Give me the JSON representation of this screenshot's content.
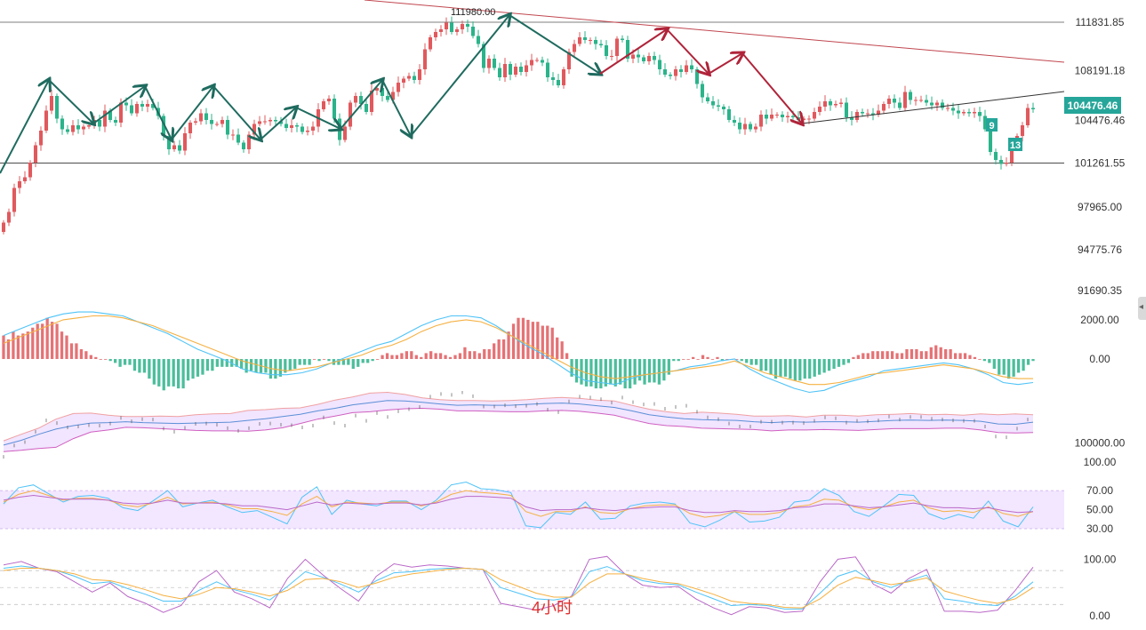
{
  "timeframe_label": "4小时",
  "colors": {
    "up": "#e0595d",
    "down": "#2bb38a",
    "wave_green": "#1f6b5f",
    "wave_red": "#b0243a",
    "resistance": "#c0474f",
    "support": "#333333",
    "price_tag": "#26a69a",
    "td_green": "#26a69a",
    "macd_dif": "#4fc3f7",
    "macd_dea": "#f5b041",
    "kdj_k": "#4fc3f7",
    "kdj_d": "#f5b041",
    "kdj_j": "#ba68c8",
    "band_fill": "#e8d4ff"
  },
  "chart_data": [
    {
      "type": "candlestick",
      "title": "",
      "y_ticks": [
        "111831.85",
        "108191.18",
        "104476.46",
        "101261.55",
        "97965.00",
        "94775.76",
        "91690.35"
      ],
      "y_tick_values": [
        111831.85,
        108191.18,
        104476.46,
        101261.55,
        97965.0,
        94775.76,
        91690.35
      ],
      "ylim": [
        90500,
        113500
      ],
      "current_price": "104476.46",
      "peak_label": "111980.00",
      "horizontal_levels": [
        111831.85,
        101261.55
      ],
      "td_labels": [
        "9",
        "13"
      ],
      "close": [
        96800,
        97600,
        99400,
        99900,
        100200,
        101300,
        102600,
        103700,
        105200,
        106300,
        104600,
        103800,
        103600,
        104100,
        103800,
        104000,
        104100,
        104500,
        104000,
        105200,
        104500,
        104300,
        105800,
        105600,
        105000,
        105700,
        105500,
        105700,
        105400,
        104800,
        103300,
        102300,
        102600,
        102200,
        103500,
        104300,
        104400,
        105000,
        104500,
        104200,
        104200,
        104500,
        103400,
        103400,
        102800,
        102300,
        103400,
        104200,
        104400,
        104400,
        104500,
        104400,
        104200,
        103900,
        104100,
        104000,
        103600,
        103700,
        104000,
        105300,
        105900,
        106100,
        104600,
        103000,
        104000,
        105800,
        106300,
        105700,
        105100,
        106700,
        106900,
        106300,
        106000,
        106600,
        107300,
        107600,
        107800,
        107500,
        108300,
        109800,
        110700,
        111100,
        111300,
        111800,
        111100,
        111300,
        111700,
        111500,
        110800,
        110200,
        108400,
        109100,
        108400,
        107700,
        108700,
        107900,
        108500,
        108100,
        108600,
        109000,
        109000,
        108800,
        107700,
        107500,
        107100,
        108300,
        109600,
        110200,
        110700,
        110500,
        110500,
        110200,
        110100,
        109300,
        109300,
        110600,
        110500,
        109100,
        109400,
        109200,
        108900,
        109300,
        109000,
        108300,
        107900,
        107800,
        108300,
        108100,
        108600,
        108300,
        107200,
        106200,
        105900,
        105600,
        105500,
        105300,
        104500,
        104300,
        103800,
        104200,
        103800,
        104000,
        104900,
        104600,
        104900,
        104900,
        104700,
        104800,
        104700,
        104500,
        104600,
        104600,
        105100,
        105500,
        105900,
        105600,
        105700,
        105800,
        104700,
        104500,
        105100,
        105000,
        105000,
        104900,
        105200,
        105700,
        106100,
        105800,
        105400,
        106600,
        106000,
        106000,
        106000,
        105800,
        105600,
        105800,
        105400,
        105400,
        105200,
        105000,
        105100,
        105000,
        105100,
        104800,
        103800,
        102100,
        101500,
        101200,
        101300,
        102700,
        103300,
        104100,
        105400,
        105300
      ]
    },
    {
      "type": "bar",
      "title": "",
      "indicator": "MACD",
      "y_ticks": [
        "2000.00",
        "0.00"
      ],
      "y_tick_values": [
        2000,
        0
      ],
      "ylim": [
        -1450,
        2450
      ],
      "histogram": [
        1200,
        1000,
        1400,
        1200,
        1300,
        1400,
        1600,
        1800,
        1800,
        2100,
        1900,
        1800,
        1400,
        1200,
        800,
        800,
        500,
        400,
        200,
        100,
        0,
        0,
        -100,
        -200,
        -400,
        -300,
        -300,
        -600,
        -700,
        -700,
        -1000,
        -1300,
        -1400,
        -1600,
        -1400,
        -1400,
        -1500,
        -1500,
        -1100,
        -1000,
        -900,
        -800,
        -600,
        -600,
        -400,
        -400,
        -400,
        -400,
        -400,
        -500,
        -700,
        -600,
        -700,
        -700,
        -700,
        -1000,
        -1000,
        -900,
        -700,
        -600,
        -500,
        -300,
        -300,
        -300,
        0,
        -100,
        0,
        -100,
        -300,
        -300,
        -300,
        -300,
        -500,
        -400,
        -200,
        -200,
        -100,
        0,
        200,
        300,
        200,
        200,
        300,
        400,
        400,
        200,
        100,
        300,
        400,
        300,
        300,
        200,
        100,
        200,
        300,
        600,
        400,
        400,
        300,
        500,
        500,
        800,
        1000,
        1000,
        1400,
        1800,
        2100,
        2100,
        2000,
        1900,
        1900,
        1700,
        1700,
        1600,
        1100,
        900,
        300,
        -900,
        -1200,
        -1300,
        -1400,
        -1400,
        -1500,
        -1500,
        -1400,
        -1300,
        -1400,
        -1300,
        -1500,
        -1500,
        -1300,
        -1100,
        -1300,
        -1200,
        -1200,
        -1300,
        -1100,
        -800,
        -100,
        -100,
        0,
        0,
        100,
        0,
        200,
        100,
        0,
        100,
        -100,
        0,
        0,
        0,
        -100,
        -200,
        -300,
        -300,
        -600,
        -600,
        -800,
        -1000,
        -900,
        -900,
        -1000,
        -1100,
        -1100,
        -1000,
        -1000,
        -900,
        -800,
        -700,
        -600,
        -500,
        -400,
        -300,
        -200,
        100,
        200,
        300,
        300,
        400,
        400,
        400,
        400,
        400,
        300,
        300,
        500,
        500,
        500,
        400,
        400,
        600,
        700,
        600,
        500,
        500,
        300,
        300,
        300,
        200,
        100,
        0,
        -100,
        -200,
        -500,
        -800,
        -800,
        -1000,
        -900,
        -700,
        -600,
        -300,
        -100
      ],
      "dif": [
        1200,
        1500,
        1800,
        2100,
        2300,
        2400,
        2400,
        2300,
        2200,
        1900,
        1600,
        1300,
        900,
        500,
        200,
        -100,
        -500,
        -700,
        -800,
        -800,
        -700,
        -500,
        -200,
        100,
        400,
        700,
        900,
        1300,
        1700,
        2000,
        2200,
        2200,
        2100,
        1700,
        1200,
        700,
        300,
        -200,
        -700,
        -1100,
        -1200,
        -1300,
        -1000,
        -800,
        -700,
        -600,
        -400,
        -300,
        -100,
        0,
        -500,
        -900,
        -1200,
        -1500,
        -1700,
        -1600,
        -1300,
        -1100,
        -900,
        -600,
        -500,
        -400,
        -300,
        -200,
        -300,
        -500,
        -800,
        -1200,
        -1300,
        -1200
      ],
      "dea": [
        800,
        1100,
        1400,
        1700,
        2000,
        2100,
        2200,
        2200,
        2100,
        1900,
        1700,
        1400,
        1100,
        800,
        500,
        200,
        -100,
        -300,
        -500,
        -600,
        -500,
        -400,
        -200,
        0,
        200,
        500,
        700,
        1000,
        1400,
        1700,
        1900,
        2000,
        1900,
        1600,
        1200,
        800,
        400,
        0,
        -400,
        -700,
        -900,
        -1000,
        -900,
        -800,
        -700,
        -600,
        -500,
        -400,
        -300,
        -100,
        -400,
        -700,
        -900,
        -1100,
        -1300,
        -1300,
        -1200,
        -1000,
        -800,
        -700,
        -600,
        -500,
        -400,
        -300,
        -400,
        -500,
        -700,
        -900,
        -1000,
        -1000
      ]
    },
    {
      "type": "line",
      "title": "",
      "indicator": "BOLL",
      "y_ticks": [
        "100000.00"
      ],
      "y_tick_values": [
        100000
      ],
      "ylim": [
        96000,
        112000
      ],
      "upper": [
        100500,
        102000,
        103400,
        105500,
        106800,
        106900,
        106400,
        106100,
        106100,
        106200,
        106100,
        106500,
        106700,
        106800,
        107500,
        107700,
        108000,
        108100,
        108900,
        109900,
        110600,
        111500,
        111700,
        111200,
        110400,
        110000,
        109800,
        109800,
        109700,
        109800,
        110000,
        110300,
        110500,
        110300,
        109900,
        109700,
        108700,
        107800,
        107200,
        106800,
        107100,
        106900,
        106600,
        106200,
        106200,
        106300,
        106000,
        106400,
        106400,
        106200,
        106500,
        106600,
        106800,
        106500,
        106600,
        106400,
        106700,
        106500,
        106700,
        106500
      ],
      "mid": [
        99500,
        100600,
        102000,
        103200,
        104000,
        104600,
        104700,
        104900,
        104700,
        104600,
        104500,
        104600,
        104700,
        104800,
        105200,
        105600,
        106100,
        106600,
        107400,
        108000,
        108800,
        109300,
        109800,
        109700,
        109400,
        109000,
        108700,
        108800,
        108700,
        108700,
        108900,
        109100,
        109200,
        109000,
        108600,
        108200,
        107400,
        106500,
        106000,
        105600,
        105400,
        105300,
        105200,
        104900,
        104700,
        104900,
        104800,
        104900,
        104900,
        104800,
        105000,
        105200,
        105300,
        105200,
        105300,
        105200,
        105000,
        104400,
        104300,
        104800
      ],
      "lower": [
        98000,
        98300,
        98700,
        99000,
        101000,
        102500,
        103000,
        103600,
        103500,
        103300,
        103100,
        102900,
        102800,
        102800,
        102700,
        103000,
        103500,
        104500,
        105500,
        106200,
        107000,
        107200,
        107600,
        107900,
        108000,
        107800,
        107400,
        107400,
        107300,
        107200,
        107200,
        107400,
        107500,
        107300,
        106900,
        106400,
        105400,
        104500,
        104000,
        103800,
        103400,
        103300,
        103200,
        103100,
        102800,
        103000,
        103000,
        103100,
        103000,
        102900,
        103100,
        103300,
        103300,
        103300,
        103400,
        103400,
        103000,
        102400,
        102300,
        102400
      ]
    },
    {
      "type": "line",
      "title": "",
      "indicator": "RSI",
      "y_ticks": [
        "100.00",
        "70.00",
        "50.00",
        "30.00"
      ],
      "y_tick_values": [
        100,
        70,
        50,
        30
      ],
      "ylim": [
        30,
        100
      ],
      "band": [
        30,
        70
      ],
      "rsi1": [
        56,
        73,
        76,
        67,
        58,
        64,
        65,
        62,
        52,
        49,
        59,
        70,
        53,
        57,
        60,
        53,
        47,
        49,
        42,
        35,
        63,
        74,
        45,
        60,
        56,
        54,
        59,
        59,
        50,
        60,
        76,
        79,
        72,
        71,
        68,
        33,
        31,
        47,
        45,
        58,
        40,
        41,
        54,
        57,
        58,
        56,
        36,
        32,
        39,
        48,
        37,
        38,
        42,
        58,
        60,
        72,
        65,
        48,
        43,
        54,
        66,
        65,
        46,
        40,
        45,
        41,
        59,
        38,
        32,
        53
      ],
      "rsi2": [
        58,
        66,
        70,
        65,
        60,
        62,
        62,
        60,
        55,
        53,
        57,
        63,
        56,
        57,
        58,
        55,
        51,
        51,
        48,
        44,
        56,
        64,
        53,
        58,
        57,
        56,
        58,
        58,
        54,
        58,
        66,
        70,
        68,
        67,
        65,
        48,
        43,
        48,
        48,
        53,
        47,
        46,
        51,
        54,
        55,
        55,
        46,
        42,
        44,
        48,
        45,
        45,
        47,
        53,
        55,
        61,
        60,
        53,
        50,
        53,
        58,
        60,
        52,
        48,
        49,
        47,
        53,
        46,
        43,
        48
      ],
      "rsi3": [
        60,
        63,
        65,
        63,
        61,
        61,
        61,
        60,
        57,
        56,
        57,
        60,
        57,
        57,
        57,
        56,
        54,
        54,
        52,
        50,
        54,
        58,
        55,
        57,
        56,
        56,
        57,
        57,
        55,
        57,
        61,
        64,
        64,
        63,
        62,
        53,
        49,
        50,
        50,
        52,
        50,
        49,
        51,
        52,
        53,
        53,
        49,
        47,
        47,
        49,
        48,
        48,
        49,
        52,
        53,
        56,
        56,
        54,
        52,
        53,
        55,
        57,
        54,
        52,
        52,
        51,
        52,
        49,
        47,
        48
      ]
    },
    {
      "type": "line",
      "title": "",
      "indicator": "KDJ",
      "y_ticks": [
        "100.00",
        "0.00"
      ],
      "y_tick_values": [
        100,
        0
      ],
      "ylim": [
        0,
        110
      ],
      "k": [
        84,
        88,
        84,
        80,
        70,
        57,
        60,
        48,
        38,
        26,
        26,
        45,
        60,
        46,
        38,
        28,
        52,
        78,
        68,
        56,
        42,
        62,
        76,
        78,
        82,
        84,
        84,
        82,
        50,
        40,
        30,
        28,
        33,
        78,
        87,
        74,
        62,
        57,
        55,
        42,
        30,
        18,
        20,
        18,
        12,
        12,
        40,
        70,
        80,
        60,
        50,
        62,
        72,
        30,
        26,
        20,
        18,
        35,
        60
      ],
      "d": [
        80,
        84,
        84,
        80,
        74,
        64,
        62,
        55,
        46,
        36,
        30,
        38,
        50,
        48,
        42,
        35,
        45,
        64,
        66,
        60,
        50,
        58,
        68,
        74,
        78,
        82,
        84,
        82,
        64,
        52,
        40,
        33,
        33,
        58,
        74,
        74,
        66,
        60,
        57,
        48,
        38,
        26,
        22,
        20,
        15,
        14,
        30,
        54,
        68,
        62,
        55,
        60,
        67,
        44,
        35,
        27,
        22,
        30,
        50
      ],
      "j": [
        90,
        96,
        84,
        78,
        60,
        42,
        58,
        34,
        22,
        6,
        18,
        60,
        80,
        42,
        30,
        14,
        66,
        100,
        72,
        48,
        26,
        70,
        92,
        86,
        90,
        88,
        84,
        82,
        22,
        16,
        10,
        18,
        35,
        100,
        105,
        74,
        54,
        50,
        52,
        30,
        14,
        2,
        16,
        14,
        6,
        8,
        60,
        100,
        104,
        56,
        40,
        66,
        82,
        8,
        8,
        6,
        10,
        45,
        86
      ]
    }
  ]
}
